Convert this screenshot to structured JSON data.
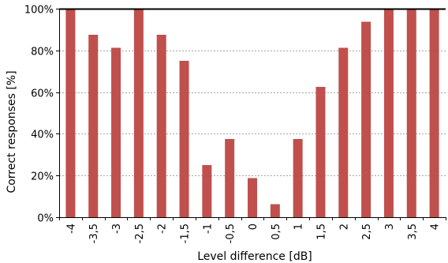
{
  "chart_data": {
    "type": "bar",
    "title": "",
    "xlabel": "Level difference [dB]",
    "ylabel": "Correct responses [%]",
    "categories": [
      "-4",
      "-3,5",
      "-3",
      "-2,5",
      "-2",
      "-1,5",
      "-1",
      "-0,5",
      "0",
      "0,5",
      "1",
      "1,5",
      "2",
      "2,5",
      "3",
      "3,5",
      "4"
    ],
    "values": [
      100,
      87.5,
      81.25,
      100,
      87.5,
      75,
      25,
      37.5,
      18.75,
      6.25,
      37.5,
      62.5,
      81.25,
      93.75,
      100,
      100,
      100
    ],
    "ylim": [
      0,
      100
    ],
    "yticks": [
      0,
      20,
      40,
      60,
      80,
      100
    ],
    "ytick_labels": [
      "0%",
      "20%",
      "40%",
      "60%",
      "80%",
      "100%"
    ],
    "grid": "horizontal dotted",
    "legend": "none",
    "bar_color": "#c0504d",
    "grid_color": "#a6a6a6",
    "axis_color": "#000000"
  }
}
